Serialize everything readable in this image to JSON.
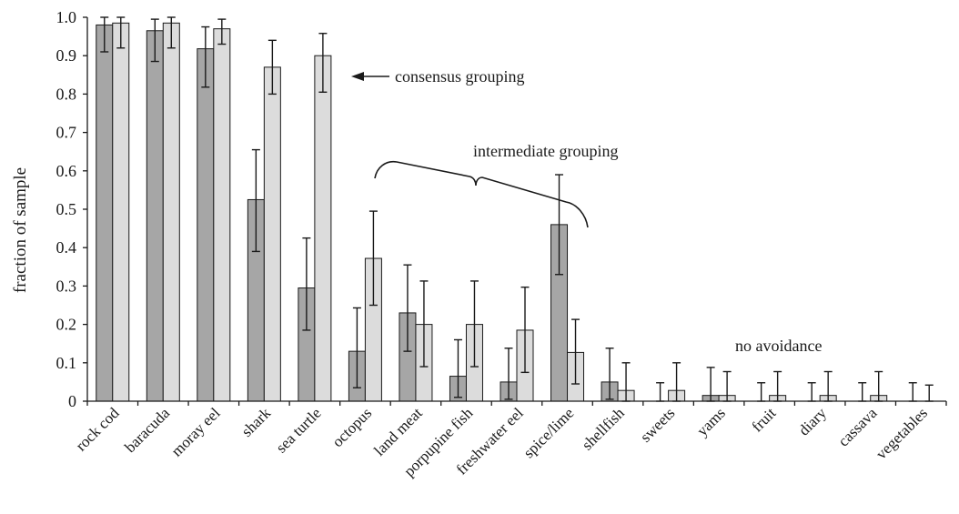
{
  "chart_data": {
    "type": "bar",
    "ylabel": "fraction of sample",
    "xlabel": "",
    "ylim": [
      0,
      1.0
    ],
    "yticks": [
      "0",
      "0.1",
      "0.2",
      "0.3",
      "0.4",
      "0.5",
      "0.6",
      "0.7",
      "0.8",
      "0.9",
      "1.0"
    ],
    "categories": [
      "rock cod",
      "baracuda",
      "moray eel",
      "shark",
      "sea turtle",
      "octopus",
      "land meat",
      "porpupine fish",
      "freshwater eel",
      "spice/lime",
      "shellfish",
      "sweets",
      "yams",
      "fruit",
      "diary",
      "cassava",
      "vegetables"
    ],
    "series": [
      {
        "color": "#a6a6a6",
        "values": [
          0.98,
          0.965,
          0.918,
          0.525,
          0.295,
          0.13,
          0.23,
          0.065,
          0.05,
          0.46,
          0.05,
          0.0,
          0.015,
          0.0,
          0.0,
          0.0,
          0.0
        ],
        "err_low": [
          0.91,
          0.885,
          0.818,
          0.39,
          0.185,
          0.035,
          0.13,
          0.01,
          0.005,
          0.33,
          0.005,
          0.0,
          0.0,
          0.0,
          0.0,
          0.0,
          0.0
        ],
        "err_high": [
          1.0,
          0.995,
          0.975,
          0.655,
          0.425,
          0.243,
          0.355,
          0.16,
          0.138,
          0.59,
          0.138,
          0.048,
          0.088,
          0.048,
          0.048,
          0.048,
          0.048
        ]
      },
      {
        "color": "#dcdcdc",
        "values": [
          0.985,
          0.985,
          0.97,
          0.87,
          0.9,
          0.372,
          0.2,
          0.2,
          0.185,
          0.127,
          0.028,
          0.028,
          0.015,
          0.015,
          0.015,
          0.015,
          0.0
        ],
        "err_low": [
          0.92,
          0.92,
          0.93,
          0.8,
          0.805,
          0.25,
          0.09,
          0.09,
          0.075,
          0.045,
          0.0,
          0.0,
          0.0,
          0.0,
          0.0,
          0.0,
          0.0
        ],
        "err_high": [
          1.0,
          1.0,
          0.995,
          0.94,
          0.958,
          0.495,
          0.313,
          0.313,
          0.297,
          0.213,
          0.1,
          0.1,
          0.077,
          0.077,
          0.077,
          0.077,
          0.042
        ]
      }
    ],
    "annotations": {
      "consensus": "consensus grouping",
      "intermediate": "intermediate grouping",
      "none": "no avoidance"
    }
  }
}
